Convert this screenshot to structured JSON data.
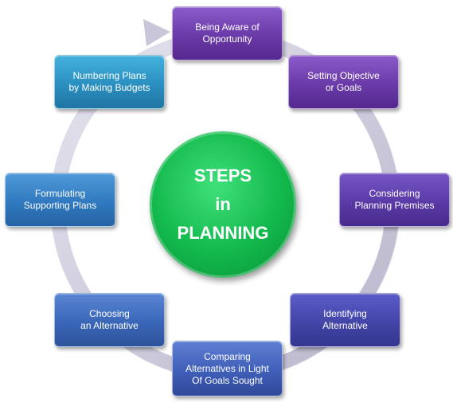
{
  "center": {
    "lines": [
      "STEPS",
      "in",
      "PLANNING"
    ]
  },
  "steps": [
    {
      "lines": [
        "Being Aware of",
        "Opportunity"
      ]
    },
    {
      "lines": [
        "Setting Objective",
        "or Goals"
      ]
    },
    {
      "lines": [
        "Considering",
        "Planning Premises"
      ]
    },
    {
      "lines": [
        "Identifying",
        "Alternative"
      ]
    },
    {
      "lines": [
        "Comparing",
        "Alternatives in Light",
        "Of Goals Sought"
      ]
    },
    {
      "lines": [
        "Choosing",
        "an Alternative"
      ]
    },
    {
      "lines": [
        "Formulating",
        "Supporting Plans"
      ]
    },
    {
      "lines": [
        "Numbering Plans",
        "by Making Budgets"
      ]
    }
  ],
  "colors": {
    "purple": "#6a3aa8",
    "blue": "#3a62b8",
    "teal": "#2a8fc0",
    "ring": "#c9c6d9",
    "center": "#12b84c"
  }
}
